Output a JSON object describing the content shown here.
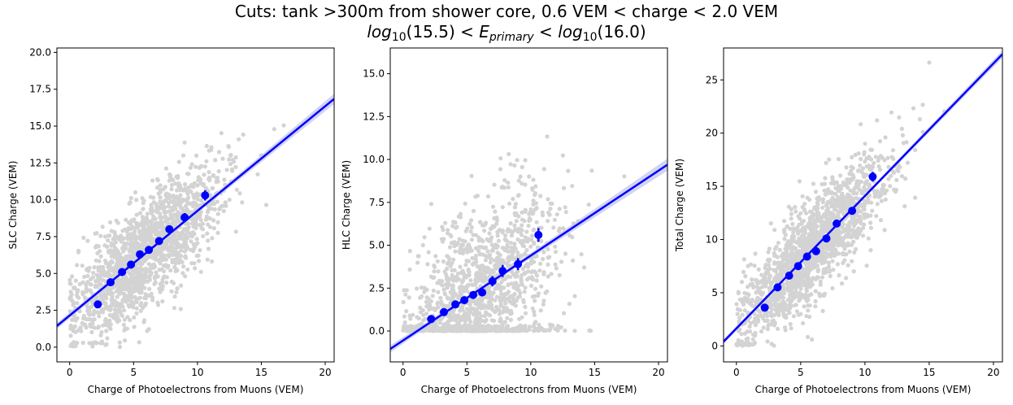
{
  "figure": {
    "title_line1": "Cuts:  tank >300m from shower core,  0.6 VEM < charge < 2.0 VEM",
    "title_line2_prefix": "log",
    "title_line2_sub1": "10",
    "title_line2_mid1": "(15.5) < ",
    "title_line2_E": "E",
    "title_line2_sub2": "primary",
    "title_line2_mid2": " < ",
    "title_line2_log2": "log",
    "title_line2_sub3": "10",
    "title_line2_end": "(16.0)"
  },
  "colors": {
    "scatter": "#d3d3d3",
    "fit_line": "#0000ff",
    "binned_points": "#0000ff",
    "confidence_band": "#c8c8f0"
  },
  "chart_data": [
    {
      "type": "scatter",
      "xlabel": "Charge of Photoelectrons from Muons (VEM)",
      "ylabel": "SLC Charge (VEM)",
      "xlim": [
        -1,
        20.7
      ],
      "ylim": [
        -1.0,
        20.3
      ],
      "xticks": [
        0,
        5,
        10,
        15,
        20
      ],
      "yticks": [
        0.0,
        2.5,
        5.0,
        7.5,
        10.0,
        12.5,
        15.0,
        17.5,
        20.0
      ],
      "ytick_labels": [
        "0.0",
        "2.5",
        "5.0",
        "7.5",
        "10.0",
        "12.5",
        "15.0",
        "17.5",
        "20.0"
      ],
      "fit": {
        "slope": 0.71,
        "intercept": 2.15
      },
      "binned": {
        "x": [
          2.2,
          3.2,
          4.1,
          4.8,
          5.5,
          6.2,
          7.0,
          7.8,
          9.0,
          10.6
        ],
        "y": [
          2.9,
          4.4,
          5.1,
          5.6,
          6.3,
          6.6,
          7.2,
          8.0,
          8.8,
          10.3
        ],
        "yerr": [
          0.15,
          0.12,
          0.12,
          0.12,
          0.15,
          0.18,
          0.2,
          0.25,
          0.3,
          0.35
        ]
      },
      "cloud": {
        "center_x": 6,
        "spread_x": 3.0,
        "noise_y": 1.8,
        "n": 1600,
        "seed": 11,
        "ymin": 0.0
      }
    },
    {
      "type": "scatter",
      "xlabel": "Charge of Photoelectrons from Muons (VEM)",
      "ylabel": "HLC Charge (VEM)",
      "xlim": [
        -1,
        20.7
      ],
      "ylim": [
        -1.8,
        16.5
      ],
      "xticks": [
        0,
        5,
        10,
        15,
        20
      ],
      "yticks": [
        0.0,
        2.5,
        5.0,
        7.5,
        10.0,
        12.5,
        15.0
      ],
      "ytick_labels": [
        "0.0",
        "2.5",
        "5.0",
        "7.5",
        "10.0",
        "12.5",
        "15.0"
      ],
      "fit": {
        "slope": 0.495,
        "intercept": -0.55
      },
      "binned": {
        "x": [
          2.2,
          3.2,
          4.1,
          4.8,
          5.5,
          6.2,
          7.0,
          7.8,
          9.0,
          10.6
        ],
        "y": [
          0.7,
          1.1,
          1.55,
          1.8,
          2.1,
          2.25,
          2.9,
          3.5,
          3.9,
          5.6
        ],
        "yerr": [
          0.1,
          0.12,
          0.12,
          0.15,
          0.15,
          0.18,
          0.3,
          0.35,
          0.35,
          0.4
        ]
      },
      "cloud": {
        "center_x": 6,
        "spread_x": 3.0,
        "noise_y": 2.3,
        "n": 1500,
        "seed": 23,
        "ymin": 0.0,
        "zero_band": true
      }
    },
    {
      "type": "scatter",
      "xlabel": "Charge of Photoelectrons from Muons (VEM)",
      "ylabel": "Total Charge (VEM)",
      "xlim": [
        -1,
        20.7
      ],
      "ylim": [
        -1.5,
        28.0
      ],
      "xticks": [
        0,
        5,
        10,
        15,
        20
      ],
      "yticks": [
        0,
        5,
        10,
        15,
        20,
        25
      ],
      "ytick_labels": [
        "0",
        "5",
        "10",
        "15",
        "20",
        "25"
      ],
      "fit": {
        "slope": 1.245,
        "intercept": 1.65
      },
      "binned": {
        "x": [
          2.2,
          3.2,
          4.1,
          4.8,
          5.5,
          6.2,
          7.0,
          7.8,
          9.0,
          10.6
        ],
        "y": [
          3.6,
          5.5,
          6.6,
          7.5,
          8.4,
          8.9,
          10.1,
          11.5,
          12.7,
          15.9
        ],
        "yerr": [
          0.15,
          0.15,
          0.15,
          0.2,
          0.2,
          0.25,
          0.3,
          0.35,
          0.35,
          0.45
        ]
      },
      "cloud": {
        "center_x": 6,
        "spread_x": 3.0,
        "noise_y": 2.3,
        "n": 1600,
        "seed": 37,
        "ymin": 0.0
      }
    }
  ]
}
